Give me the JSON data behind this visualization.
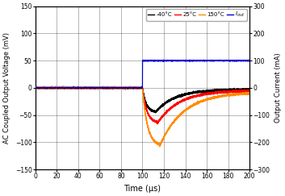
{
  "title": "",
  "ylabel_left": "AC Coupled Output Voltage (mV)",
  "ylabel_right": "Output Current (mA)",
  "xlabel": "Time (μs)",
  "xlim": [
    0,
    200
  ],
  "ylim_left": [
    -150,
    150
  ],
  "ylim_right": [
    -300,
    300
  ],
  "xticks": [
    0,
    20,
    40,
    60,
    80,
    100,
    120,
    140,
    160,
    180,
    200
  ],
  "yticks_left": [
    -150,
    -100,
    -50,
    0,
    50,
    100,
    150
  ],
  "yticks_right": [
    -300,
    -200,
    -100,
    0,
    100,
    200,
    300
  ],
  "legend": [
    {
      "label": "-40°C",
      "color": "#000000"
    },
    {
      "label": "25°C",
      "color": "#ff0000"
    },
    {
      "label": "150°C",
      "color": "#ff8c00"
    },
    {
      "label": "I_out",
      "color": "#0000cd"
    }
  ],
  "step_time": 100,
  "i_out_level": 100,
  "v_m40_peak": -45,
  "v_m40_peak_t": 112,
  "v_m40_tau": 18,
  "v_25_peak": -65,
  "v_25_peak_t": 114,
  "v_25_tau": 20,
  "v_150_peak": -107,
  "v_150_peak_t": 116,
  "v_150_tau": 22,
  "noise_seed": 7,
  "background_color": "#ffffff"
}
